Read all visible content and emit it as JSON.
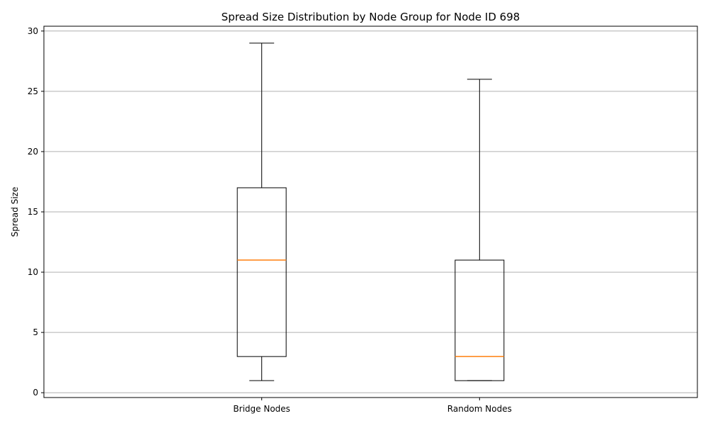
{
  "chart_data": {
    "type": "box",
    "title": "Spread Size Distribution by Node Group for Node ID 698",
    "xlabel": "",
    "ylabel": "Spread Size",
    "ylim": [
      -0.4,
      30.4
    ],
    "yticks": [
      0,
      5,
      10,
      15,
      20,
      25,
      30
    ],
    "grid": "y",
    "categories": [
      "Bridge Nodes",
      "Random Nodes"
    ],
    "boxes": [
      {
        "category": "Bridge Nodes",
        "whisker_low": 1,
        "q1": 3,
        "median": 11,
        "q3": 17,
        "whisker_high": 29
      },
      {
        "category": "Random Nodes",
        "whisker_low": 1,
        "q1": 1,
        "median": 3,
        "q3": 11,
        "whisker_high": 26
      }
    ],
    "colors": {
      "box": "#000000",
      "median": "#ff7f0e",
      "grid": "#b0b0b0"
    }
  }
}
